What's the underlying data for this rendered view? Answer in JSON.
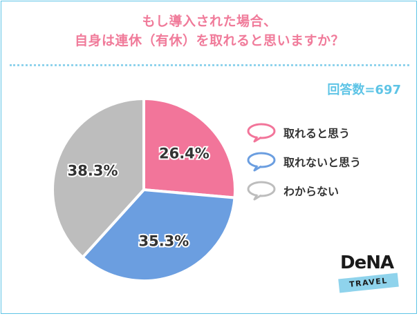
{
  "title_line1": "もし導入された場合、",
  "title_line2": "自身は連休（有休）を取れると思いますか？",
  "respondents": "回答数=697",
  "chart_data": {
    "type": "pie",
    "title": "もし導入された場合、自身は連休（有休）を取れると思いますか？",
    "slices": [
      {
        "label": "取れると思う",
        "value": 26.4,
        "display": "26.4%",
        "color": "#f2759a"
      },
      {
        "label": "取れないと思う",
        "value": 35.3,
        "display": "35.3%",
        "color": "#6b9ee0"
      },
      {
        "label": "わからない",
        "value": 38.3,
        "display": "38.3%",
        "color": "#bdbdbd"
      }
    ],
    "legend_position": "right"
  },
  "logo": {
    "name": "DeNA",
    "sub": "TRAVEL"
  }
}
